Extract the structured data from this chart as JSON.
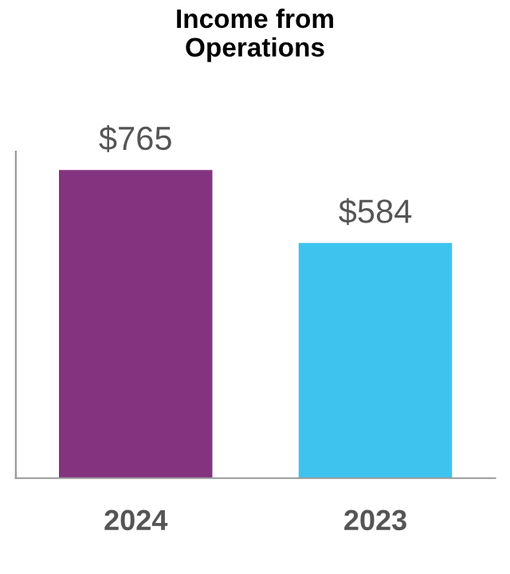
{
  "chart_data": {
    "type": "bar",
    "title": "Income from\nOperations",
    "categories": [
      "2024",
      "2023"
    ],
    "values": [
      765,
      584
    ],
    "colors": [
      "#84347f",
      "#3ec3ef"
    ],
    "value_labels": [
      "$765",
      "$584"
    ],
    "grid": false
  }
}
